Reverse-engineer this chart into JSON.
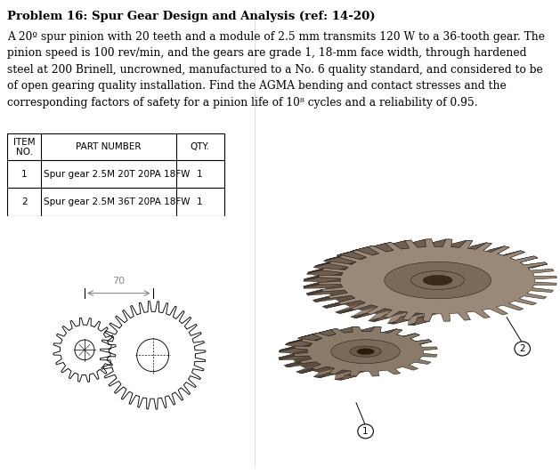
{
  "title": "Problem 16: Spur Gear Design and Analysis (ref: 14-20)",
  "body_text": "A 20º spur pinion with 20 teeth and a module of 2.5 mm transmits 120 W to a 36-tooth gear. The\npinion speed is 100 rev/min, and the gears are grade 1, 18-mm face width, through hardened\nsteel at 200 Brinell, uncrowned, manufactured to a No. 6 quality standard, and considered to be\nof open gearing quality installation. Find the AGMA bending and contact stresses and the\ncorresponding factors of safety for a pinion life of 10⁸ cycles and a reliability of 0.95.",
  "table_headers": [
    "ITEM\nNO.",
    "PART NUMBER",
    "QTY."
  ],
  "table_rows": [
    [
      "1",
      "Spur gear 2.5M 20T 20PA 18FW",
      "1"
    ],
    [
      "2",
      "Spur gear 2.5M 36T 20PA 18FW",
      "1"
    ]
  ],
  "dimension_label": "70",
  "callout_1": "1",
  "callout_2": "2",
  "bg_color": "#ffffff",
  "text_color": "#000000",
  "title_fontsize": 9.5,
  "body_fontsize": 8.8,
  "table_fontsize": 7.5,
  "gear3d_base": "#9a8878",
  "gear3d_shade": "#6e5f52",
  "gear3d_mid": "#8a7a6a",
  "gear3d_light": "#b8a898",
  "gear3d_bore": "#7a6a5a",
  "gear3d_bore_inner": "#4a3a2a"
}
